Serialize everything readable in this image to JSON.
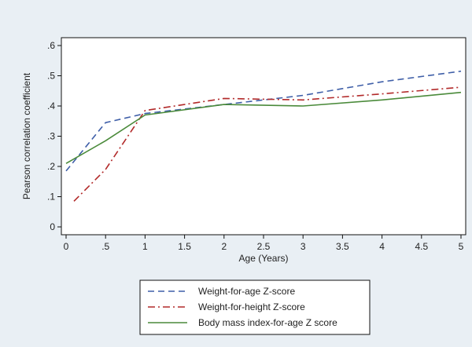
{
  "chart_data": {
    "type": "line",
    "title": "",
    "xlabel": "Age (Years)",
    "ylabel": "Pearson correlation coefficient",
    "xlim": [
      0,
      5
    ],
    "ylim": [
      0,
      0.6
    ],
    "grid": false,
    "background_color": "#e9eff4",
    "plot_background_color": "#ffffff",
    "xticks": [
      0,
      0.5,
      1,
      1.5,
      2,
      2.5,
      3,
      3.5,
      4,
      4.5,
      5
    ],
    "xtick_labels": [
      "0",
      ".5",
      "1",
      "1.5",
      "2",
      "2.5",
      "3",
      "3.5",
      "4",
      "4.5",
      "5"
    ],
    "yticks": [
      0,
      0.1,
      0.2,
      0.3,
      0.4,
      0.5,
      0.6
    ],
    "ytick_labels": [
      "0",
      ".1",
      ".2",
      ".3",
      ".4",
      ".5",
      ".6"
    ],
    "legend_position": "bottom",
    "series": [
      {
        "name": "Weight-for-age Z-score",
        "color": "#3f5fa8",
        "style": "dashed",
        "x": [
          0.0,
          0.5,
          1.0,
          2.0,
          3.0,
          4.0,
          5.0
        ],
        "y": [
          0.185,
          0.345,
          0.375,
          0.405,
          0.435,
          0.48,
          0.515
        ]
      },
      {
        "name": "Weight-for-height Z-score",
        "color": "#b22a2a",
        "style": "dashdot",
        "x": [
          0.1,
          0.5,
          1.0,
          2.0,
          3.0,
          4.0,
          5.0
        ],
        "y": [
          0.085,
          0.19,
          0.385,
          0.425,
          0.42,
          0.44,
          0.462
        ]
      },
      {
        "name": "Body mass index-for-age Z score",
        "color": "#4a8a3a",
        "style": "solid",
        "x": [
          0.0,
          0.5,
          1.0,
          2.0,
          3.0,
          4.0,
          5.0
        ],
        "y": [
          0.21,
          0.285,
          0.37,
          0.405,
          0.4,
          0.42,
          0.445
        ]
      }
    ]
  }
}
